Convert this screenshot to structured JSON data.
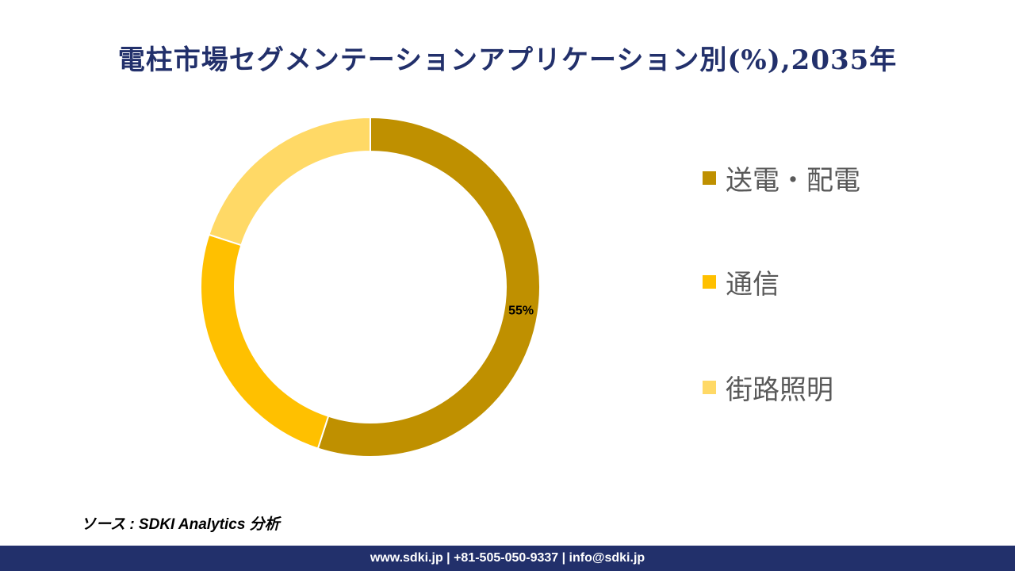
{
  "title": "電柱市場セグメンテーションアプリケーション別(%),2035年",
  "chart_data": {
    "type": "pie",
    "donut": true,
    "categories": [
      "送電・配電",
      "通信",
      "街路照明"
    ],
    "values": [
      55,
      25,
      20
    ],
    "colors": [
      "#bf9000",
      "#ffc000",
      "#ffd966"
    ],
    "data_labels": [
      "55%",
      "",
      ""
    ],
    "legend_position": "right"
  },
  "legend": {
    "items": [
      {
        "label": "送電・配電",
        "color": "#bf9000"
      },
      {
        "label": "通信",
        "color": "#ffc000"
      },
      {
        "label": "街路照明",
        "color": "#ffd966"
      }
    ]
  },
  "source": "ソース : SDKI Analytics 分析",
  "footer": "www.sdki.jp | +81-505-050-9337 | info@sdki.jp"
}
